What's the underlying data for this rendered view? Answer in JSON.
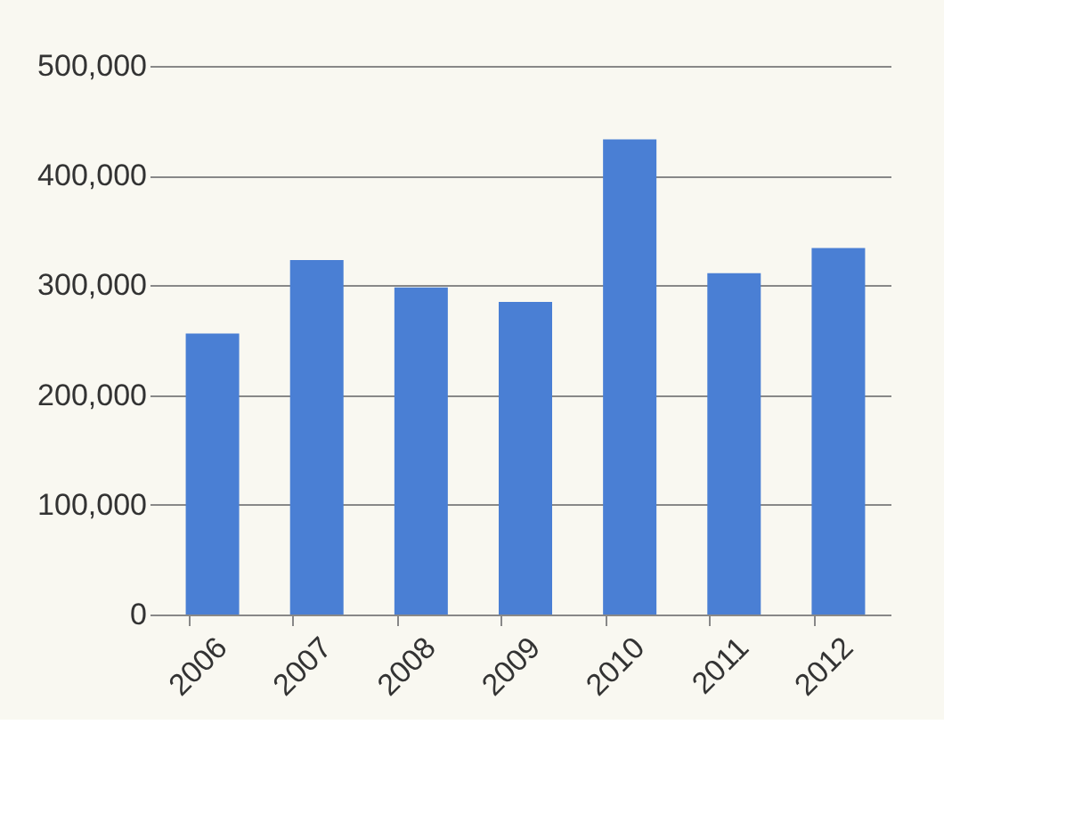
{
  "chart_data": {
    "type": "bar",
    "categories": [
      "2006",
      "2007",
      "2008",
      "2009",
      "2010",
      "2011",
      "2012"
    ],
    "values": [
      256000,
      323000,
      298000,
      285000,
      433000,
      311000,
      334000
    ],
    "color": "#4a7fd4",
    "ylim": [
      0,
      500000
    ],
    "yticks": [
      {
        "value": 0,
        "label": "0"
      },
      {
        "value": 100000,
        "label": "100,000"
      },
      {
        "value": 200000,
        "label": "200,000"
      },
      {
        "value": 300000,
        "label": "300,000"
      },
      {
        "value": 400000,
        "label": "400,000"
      },
      {
        "value": 500000,
        "label": "500,000"
      }
    ],
    "grid": "y"
  }
}
